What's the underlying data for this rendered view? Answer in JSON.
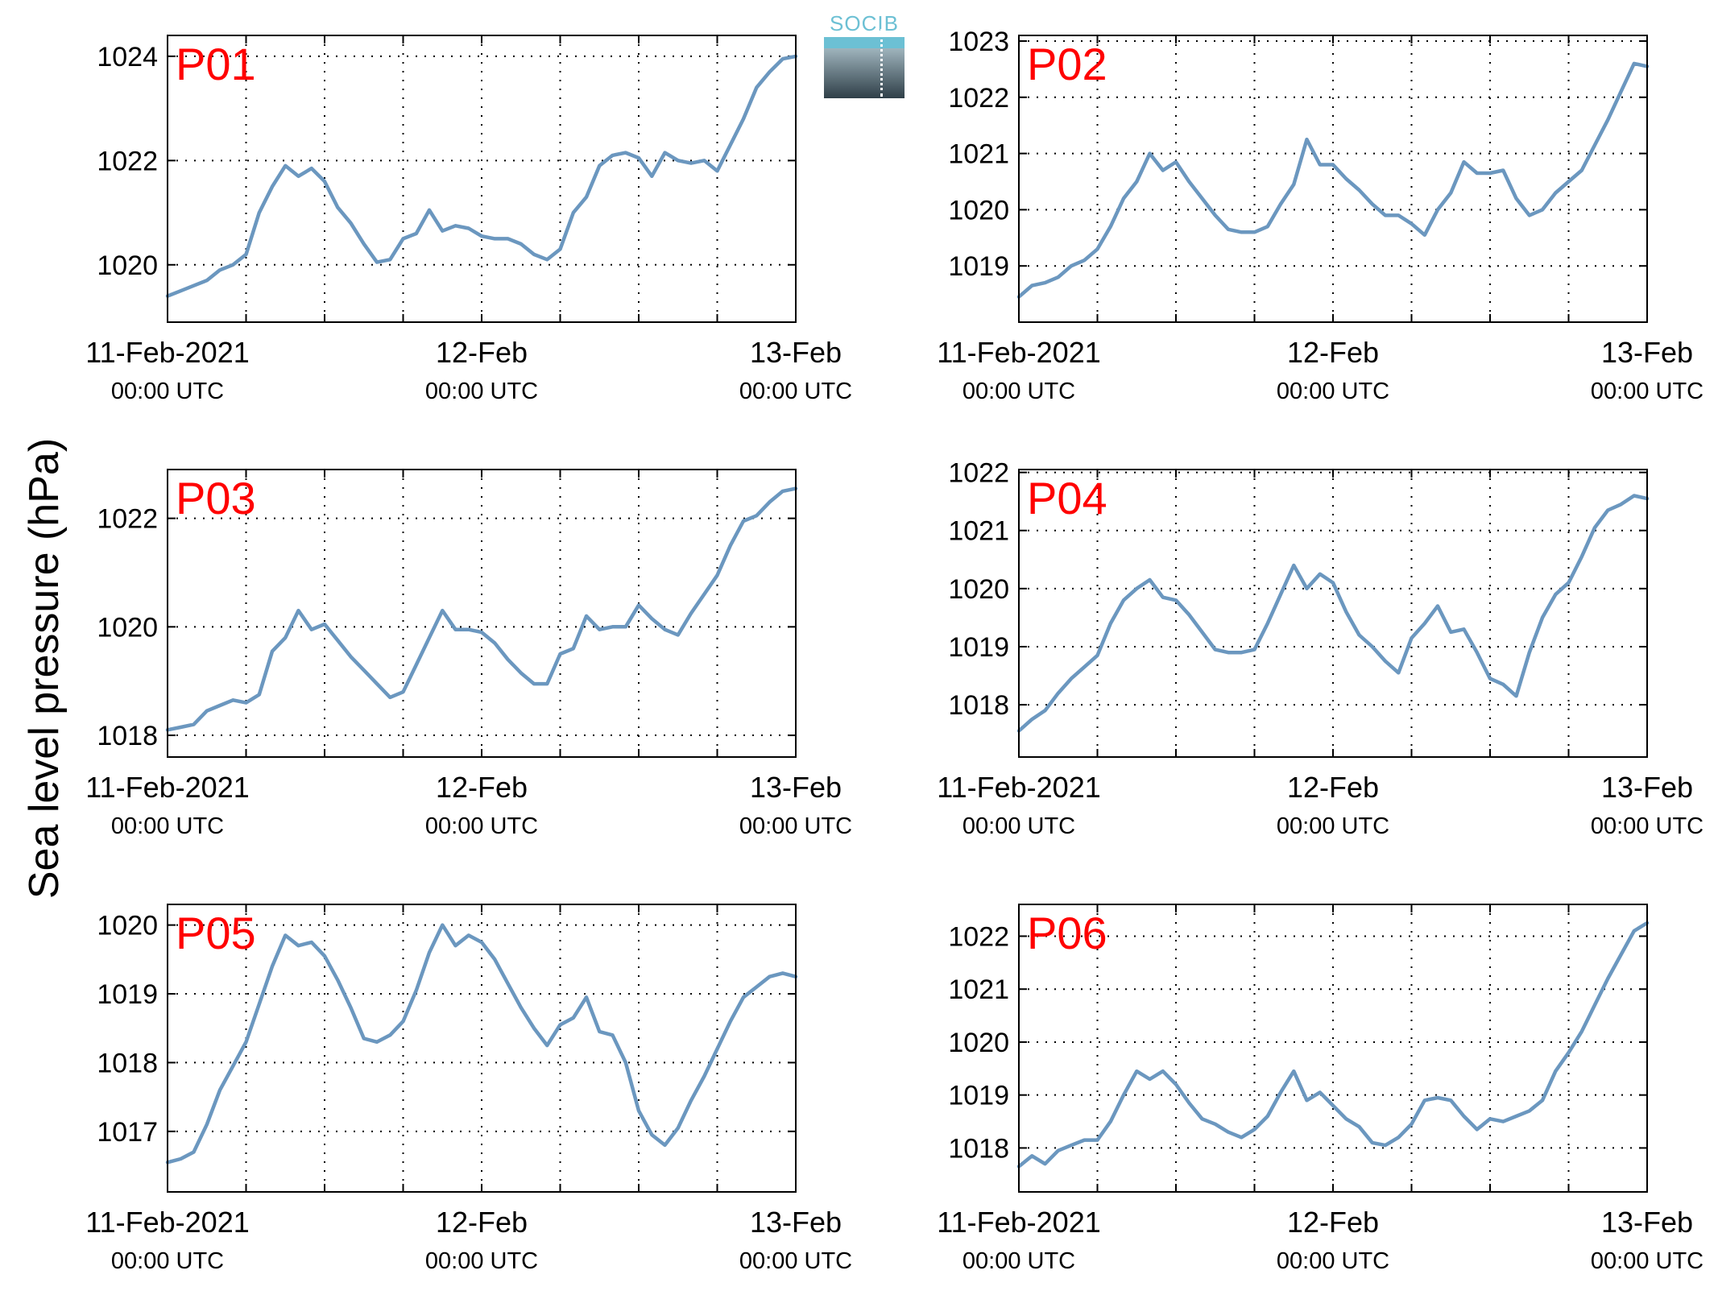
{
  "figure": {
    "ylabel": "Sea level pressure (hPa)",
    "logo_text": "SOCIB",
    "colors": {
      "series": "#6b97bf",
      "panel_label": "#ff0000",
      "axes": "#000000",
      "grid": "#000000"
    }
  },
  "chart_data": [
    {
      "type": "line",
      "panel": "P01",
      "x_ticks": [
        {
          "date": "11-Feb-2021",
          "time": "00:00 UTC"
        },
        {
          "date": "12-Feb",
          "time": "00:00 UTC"
        },
        {
          "date": "13-Feb",
          "time": "00:00 UTC"
        }
      ],
      "xlim_hours": [
        0,
        48
      ],
      "x_grid_hours": [
        6,
        12,
        18,
        24,
        30,
        36,
        42
      ],
      "yticks": [
        1020,
        1022,
        1024
      ],
      "ylim": [
        1018.9,
        1024.4
      ],
      "x_hours": [
        0,
        1,
        2,
        3,
        4,
        5,
        6,
        7,
        8,
        9,
        10,
        11,
        12,
        13,
        14,
        15,
        16,
        17,
        18,
        19,
        20,
        21,
        22,
        23,
        24,
        25,
        26,
        27,
        28,
        29,
        30,
        31,
        32,
        33,
        34,
        35,
        36,
        37,
        38,
        39,
        40,
        41,
        42,
        43,
        44,
        45,
        46,
        47,
        48
      ],
      "values": [
        1019.4,
        1019.5,
        1019.6,
        1019.7,
        1019.9,
        1020.0,
        1020.2,
        1021.0,
        1021.5,
        1021.9,
        1021.7,
        1021.85,
        1021.6,
        1021.1,
        1020.8,
        1020.4,
        1020.05,
        1020.1,
        1020.5,
        1020.6,
        1021.05,
        1020.65,
        1020.75,
        1020.7,
        1020.55,
        1020.5,
        1020.5,
        1020.4,
        1020.2,
        1020.1,
        1020.3,
        1021.0,
        1021.3,
        1021.9,
        1022.1,
        1022.15,
        1022.05,
        1021.7,
        1022.15,
        1022.0,
        1021.95,
        1022.0,
        1021.8,
        1022.3,
        1022.8,
        1023.4,
        1023.7,
        1023.95,
        1024.0
      ]
    },
    {
      "type": "line",
      "panel": "P02",
      "x_ticks": [
        {
          "date": "11-Feb-2021",
          "time": "00:00 UTC"
        },
        {
          "date": "12-Feb",
          "time": "00:00 UTC"
        },
        {
          "date": "13-Feb",
          "time": "00:00 UTC"
        }
      ],
      "xlim_hours": [
        0,
        48
      ],
      "x_grid_hours": [
        6,
        12,
        18,
        24,
        30,
        36,
        42
      ],
      "yticks": [
        1019,
        1020,
        1021,
        1022,
        1023
      ],
      "ylim": [
        1018.0,
        1023.1
      ],
      "x_hours": [
        0,
        1,
        2,
        3,
        4,
        5,
        6,
        7,
        8,
        9,
        10,
        11,
        12,
        13,
        14,
        15,
        16,
        17,
        18,
        19,
        20,
        21,
        22,
        23,
        24,
        25,
        26,
        27,
        28,
        29,
        30,
        31,
        32,
        33,
        34,
        35,
        36,
        37,
        38,
        39,
        40,
        41,
        42,
        43,
        44,
        45,
        46,
        47,
        48
      ],
      "values": [
        1018.45,
        1018.65,
        1018.7,
        1018.8,
        1019.0,
        1019.1,
        1019.3,
        1019.7,
        1020.2,
        1020.5,
        1021.0,
        1020.7,
        1020.85,
        1020.5,
        1020.2,
        1019.9,
        1019.65,
        1019.6,
        1019.6,
        1019.7,
        1020.1,
        1020.45,
        1021.25,
        1020.8,
        1020.8,
        1020.55,
        1020.35,
        1020.1,
        1019.9,
        1019.9,
        1019.75,
        1019.55,
        1020.0,
        1020.3,
        1020.85,
        1020.65,
        1020.65,
        1020.7,
        1020.2,
        1019.9,
        1020.0,
        1020.3,
        1020.5,
        1020.7,
        1021.15,
        1021.6,
        1022.1,
        1022.6,
        1022.55
      ]
    },
    {
      "type": "line",
      "panel": "P03",
      "x_ticks": [
        {
          "date": "11-Feb-2021",
          "time": "00:00 UTC"
        },
        {
          "date": "12-Feb",
          "time": "00:00 UTC"
        },
        {
          "date": "13-Feb",
          "time": "00:00 UTC"
        }
      ],
      "xlim_hours": [
        0,
        48
      ],
      "x_grid_hours": [
        6,
        12,
        18,
        24,
        30,
        36,
        42
      ],
      "yticks": [
        1018,
        1020,
        1022
      ],
      "ylim": [
        1017.6,
        1022.9
      ],
      "x_hours": [
        0,
        1,
        2,
        3,
        4,
        5,
        6,
        7,
        8,
        9,
        10,
        11,
        12,
        13,
        14,
        15,
        16,
        17,
        18,
        19,
        20,
        21,
        22,
        23,
        24,
        25,
        26,
        27,
        28,
        29,
        30,
        31,
        32,
        33,
        34,
        35,
        36,
        37,
        38,
        39,
        40,
        41,
        42,
        43,
        44,
        45,
        46,
        47,
        48
      ],
      "values": [
        1018.1,
        1018.15,
        1018.2,
        1018.45,
        1018.55,
        1018.65,
        1018.6,
        1018.75,
        1019.55,
        1019.8,
        1020.3,
        1019.95,
        1020.05,
        1019.75,
        1019.45,
        1019.2,
        1018.95,
        1018.7,
        1018.8,
        1019.3,
        1019.8,
        1020.3,
        1019.95,
        1019.95,
        1019.9,
        1019.7,
        1019.4,
        1019.15,
        1018.95,
        1018.95,
        1019.5,
        1019.6,
        1020.2,
        1019.95,
        1020.0,
        1020.0,
        1020.4,
        1020.15,
        1019.95,
        1019.85,
        1020.25,
        1020.6,
        1020.95,
        1021.5,
        1021.95,
        1022.05,
        1022.3,
        1022.5,
        1022.55
      ]
    },
    {
      "type": "line",
      "panel": "P04",
      "x_ticks": [
        {
          "date": "11-Feb-2021",
          "time": "00:00 UTC"
        },
        {
          "date": "12-Feb",
          "time": "00:00 UTC"
        },
        {
          "date": "13-Feb",
          "time": "00:00 UTC"
        }
      ],
      "xlim_hours": [
        0,
        48
      ],
      "x_grid_hours": [
        6,
        12,
        18,
        24,
        30,
        36,
        42
      ],
      "yticks": [
        1018,
        1019,
        1020,
        1021,
        1022
      ],
      "ylim": [
        1017.1,
        1022.05
      ],
      "x_hours": [
        0,
        1,
        2,
        3,
        4,
        5,
        6,
        7,
        8,
        9,
        10,
        11,
        12,
        13,
        14,
        15,
        16,
        17,
        18,
        19,
        20,
        21,
        22,
        23,
        24,
        25,
        26,
        27,
        28,
        29,
        30,
        31,
        32,
        33,
        34,
        35,
        36,
        37,
        38,
        39,
        40,
        41,
        42,
        43,
        44,
        45,
        46,
        47,
        48
      ],
      "values": [
        1017.55,
        1017.75,
        1017.9,
        1018.2,
        1018.45,
        1018.65,
        1018.85,
        1019.4,
        1019.8,
        1020.0,
        1020.15,
        1019.85,
        1019.8,
        1019.55,
        1019.25,
        1018.95,
        1018.9,
        1018.9,
        1018.95,
        1019.4,
        1019.9,
        1020.4,
        1020.0,
        1020.25,
        1020.1,
        1019.6,
        1019.2,
        1019.0,
        1018.75,
        1018.55,
        1019.15,
        1019.4,
        1019.7,
        1019.25,
        1019.3,
        1018.9,
        1018.45,
        1018.35,
        1018.15,
        1018.9,
        1019.5,
        1019.9,
        1020.1,
        1020.55,
        1021.05,
        1021.35,
        1021.45,
        1021.6,
        1021.55
      ]
    },
    {
      "type": "line",
      "panel": "P05",
      "x_ticks": [
        {
          "date": "11-Feb-2021",
          "time": "00:00 UTC"
        },
        {
          "date": "12-Feb",
          "time": "00:00 UTC"
        },
        {
          "date": "13-Feb",
          "time": "00:00 UTC"
        }
      ],
      "xlim_hours": [
        0,
        48
      ],
      "x_grid_hours": [
        6,
        12,
        18,
        24,
        30,
        36,
        42
      ],
      "yticks": [
        1017,
        1018,
        1019,
        1020
      ],
      "ylim": [
        1016.12,
        1020.3
      ],
      "x_hours": [
        0,
        1,
        2,
        3,
        4,
        5,
        6,
        7,
        8,
        9,
        10,
        11,
        12,
        13,
        14,
        15,
        16,
        17,
        18,
        19,
        20,
        21,
        22,
        23,
        24,
        25,
        26,
        27,
        28,
        29,
        30,
        31,
        32,
        33,
        34,
        35,
        36,
        37,
        38,
        39,
        40,
        41,
        42,
        43,
        44,
        45,
        46,
        47,
        48
      ],
      "values": [
        1016.55,
        1016.6,
        1016.7,
        1017.1,
        1017.6,
        1017.95,
        1018.3,
        1018.85,
        1019.4,
        1019.85,
        1019.7,
        1019.75,
        1019.55,
        1019.2,
        1018.8,
        1018.35,
        1018.3,
        1018.4,
        1018.6,
        1019.05,
        1019.6,
        1020.0,
        1019.7,
        1019.85,
        1019.75,
        1019.5,
        1019.15,
        1018.8,
        1018.5,
        1018.25,
        1018.55,
        1018.65,
        1018.95,
        1018.45,
        1018.4,
        1018.0,
        1017.3,
        1016.95,
        1016.8,
        1017.05,
        1017.45,
        1017.8,
        1018.2,
        1018.6,
        1018.95,
        1019.1,
        1019.25,
        1019.3,
        1019.25
      ]
    },
    {
      "type": "line",
      "panel": "P06",
      "x_ticks": [
        {
          "date": "11-Feb-2021",
          "time": "00:00 UTC"
        },
        {
          "date": "12-Feb",
          "time": "00:00 UTC"
        },
        {
          "date": "13-Feb",
          "time": "00:00 UTC"
        }
      ],
      "xlim_hours": [
        0,
        48
      ],
      "x_grid_hours": [
        6,
        12,
        18,
        24,
        30,
        36,
        42
      ],
      "yticks": [
        1018,
        1019,
        1020,
        1021,
        1022
      ],
      "ylim": [
        1017.17,
        1022.6
      ],
      "x_hours": [
        0,
        1,
        2,
        3,
        4,
        5,
        6,
        7,
        8,
        9,
        10,
        11,
        12,
        13,
        14,
        15,
        16,
        17,
        18,
        19,
        20,
        21,
        22,
        23,
        24,
        25,
        26,
        27,
        28,
        29,
        30,
        31,
        32,
        33,
        34,
        35,
        36,
        37,
        38,
        39,
        40,
        41,
        42,
        43,
        44,
        45,
        46,
        47,
        48
      ],
      "values": [
        1017.65,
        1017.85,
        1017.7,
        1017.95,
        1018.05,
        1018.15,
        1018.15,
        1018.5,
        1019.0,
        1019.45,
        1019.3,
        1019.45,
        1019.2,
        1018.85,
        1018.55,
        1018.45,
        1018.3,
        1018.2,
        1018.35,
        1018.6,
        1019.05,
        1019.45,
        1018.9,
        1019.05,
        1018.8,
        1018.55,
        1018.4,
        1018.1,
        1018.05,
        1018.2,
        1018.45,
        1018.9,
        1018.95,
        1018.9,
        1018.6,
        1018.35,
        1018.55,
        1018.5,
        1018.6,
        1018.7,
        1018.9,
        1019.45,
        1019.8,
        1020.2,
        1020.7,
        1021.2,
        1021.65,
        1022.1,
        1022.25
      ]
    }
  ]
}
